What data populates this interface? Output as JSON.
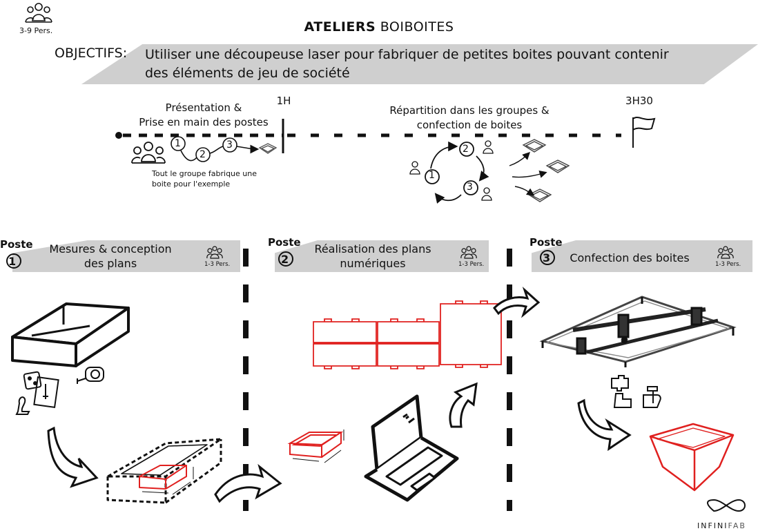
{
  "header": {
    "title_bold": "ATELIERS",
    "title_rest": "BOIBOITES",
    "persons": "3-9 Pers."
  },
  "objectives": {
    "label": "OBJECTIFS:",
    "line1": "Utiliser une découpeuse laser pour fabriquer de petites boites pouvant contenir",
    "line2": "des éléments de jeu de société"
  },
  "timeline": {
    "start_line1": "Présentation &",
    "start_line2": "Prise en main des postes",
    "marker_1": "1H",
    "marker_2": "3H30",
    "mid_line1": "Répartition dans les groupes &",
    "mid_line2": "confection de boites",
    "example_line1": "Tout le groupe fabrique une",
    "example_line2": "boite pour l'exemple",
    "steps": [
      "1",
      "2",
      "3"
    ]
  },
  "postes": [
    {
      "word": "Poste",
      "num": "1",
      "line1": "Mesures & conception",
      "line2": "des plans",
      "persons": "1-3 Pers."
    },
    {
      "word": "Poste",
      "num": "2",
      "line1": "Réalisation des plans",
      "line2": "numériques",
      "persons": "1-3 Pers."
    },
    {
      "word": "Poste",
      "num": "3",
      "line1": "Confection des boites",
      "line2": "",
      "persons": "1-3 Pers."
    }
  ],
  "brand": {
    "name_a": "INFINI",
    "name_b": "FAB"
  },
  "colors": {
    "accent_red": "#e0201f",
    "band_gray": "#cfcfcf",
    "ink": "#111111"
  }
}
